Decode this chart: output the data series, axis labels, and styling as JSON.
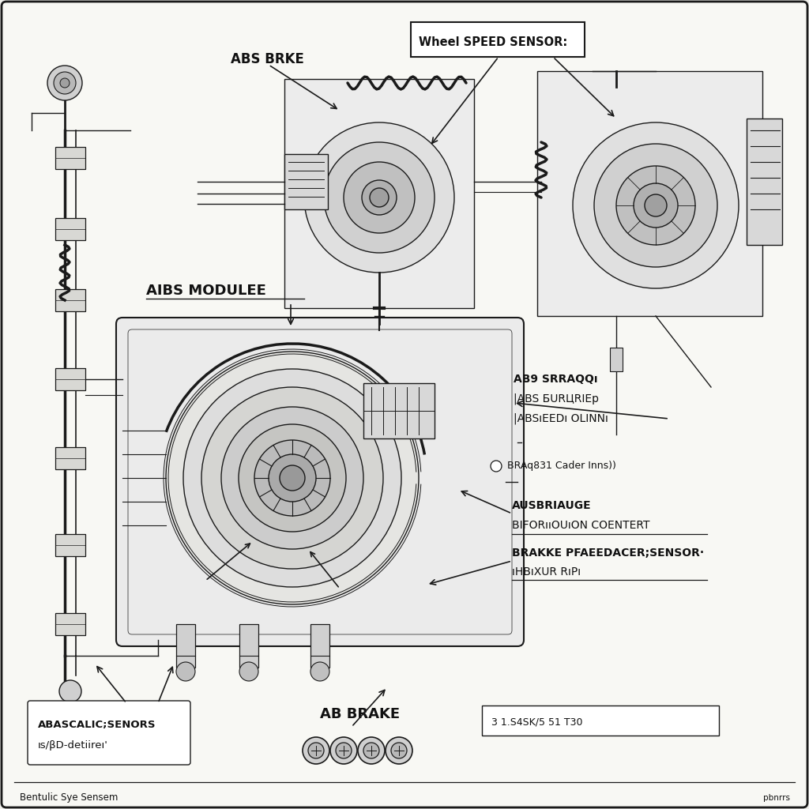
{
  "bg_color": "#f0f0eb",
  "diagram_bg": "#ffffff",
  "line_color": "#1a1a1a",
  "text_color": "#111111",
  "labels": {
    "wheel_speed_sensor": "Wheel SPEED SENSOR:",
    "abs_brake_top": "ABS BRKE",
    "aibs_module": "AIBS MODULEЕ",
    "abs_spraqq_1": "AB9 SRRAQQı",
    "abs_spraqq_2": "|ABS БURЦRIEр",
    "abs_spraqq_3": "|ABSıЕEDı OLINNı",
    "braq": "BRAq831 Cader Inns))",
    "ausbriauge": "AUSBRIAUGE",
    "bifor": "BIFORııOUıON COENTERT",
    "brakke": "BRAKKE PFAEEDACER;SENSOR·",
    "hb": "ıHBıXUR RıPı",
    "ab_brake": "AB BRAKE",
    "part_num": "3 1.S4SK/5 51 T30",
    "abascalic": "ABASCALIC;SENORS",
    "sbd": "ıs/βD-detiireı'",
    "footer_left": "Bentulic Sye Sensem",
    "footer_right": "pbnrrs"
  }
}
